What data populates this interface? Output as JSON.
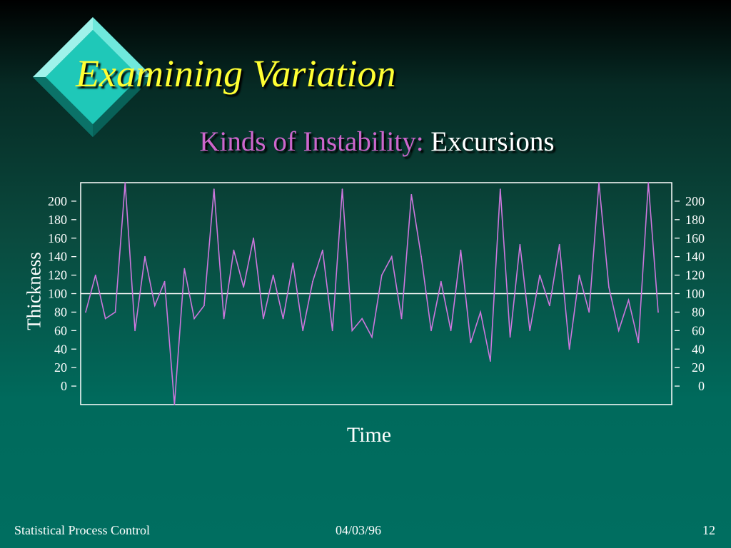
{
  "slide": {
    "title": "Examining Variation",
    "subtitle_prefix": "Kinds of Instability:",
    "subtitle_emphasis": "Excursions"
  },
  "footer": {
    "left": "Statistical Process Control",
    "center": "04/03/96",
    "right": "12"
  },
  "colors": {
    "title": "#ffff33",
    "subtitle_prefix": "#cc66cc",
    "series_line": "#cc77dd",
    "center_line": "#ffffff",
    "diamond": "#1fc8b8"
  },
  "chart_data": {
    "type": "line",
    "xlabel": "Time",
    "ylabel": "Thickness",
    "ylim": [
      -20,
      220
    ],
    "yticks": [
      0,
      20,
      40,
      60,
      80,
      100,
      120,
      140,
      160,
      180,
      200
    ],
    "center_line": 100,
    "axes": "y-axis ticks on both left and right",
    "series": [
      {
        "values": [
          80,
          120,
          73,
          80,
          220,
          60,
          140,
          87,
          113,
          -20,
          127,
          73,
          87,
          213,
          73,
          147,
          107,
          160,
          73,
          120,
          73,
          133,
          60,
          113,
          147,
          60,
          213,
          60,
          73,
          53,
          120,
          140,
          73,
          207,
          140,
          60,
          113,
          60,
          147,
          47,
          80,
          27,
          213,
          53,
          153,
          60,
          120,
          87,
          153,
          40,
          120,
          80,
          220,
          107,
          60,
          93,
          47,
          220,
          80
        ]
      }
    ]
  }
}
